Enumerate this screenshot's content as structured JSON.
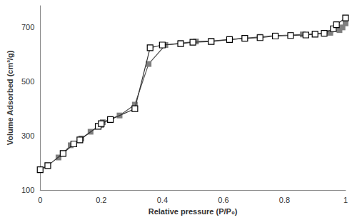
{
  "chart_data": {
    "type": "line",
    "x_label": "Relative pressure (P/P₀)",
    "y_label": "Volume Adsorbed (cm³/g)",
    "xlim": [
      0,
      1
    ],
    "xticks": [
      0,
      0.2,
      0.4,
      0.6,
      0.8,
      1
    ],
    "ylim": [
      100,
      780
    ],
    "yticks": [
      100,
      300,
      500,
      700
    ],
    "grid": false,
    "series": [
      {
        "color": "#000000",
        "marker": "square-open",
        "line_style": "solid",
        "x": [
          0.0,
          0.025,
          0.075,
          0.11,
          0.13,
          0.19,
          0.2,
          0.23,
          0.31,
          0.36,
          0.4,
          0.46,
          0.5,
          0.56,
          0.62,
          0.67,
          0.72,
          0.77,
          0.82,
          0.87,
          0.9,
          0.93,
          0.96,
          0.97,
          1.0
        ],
        "values": [
          175,
          190,
          235,
          270,
          285,
          335,
          345,
          360,
          400,
          625,
          635,
          640,
          645,
          648,
          655,
          660,
          662,
          668,
          670,
          672,
          675,
          678,
          695,
          710,
          735
        ]
      },
      {
        "color": "#7f7f7f",
        "marker": "square",
        "line_style": "solid",
        "x": [
          0.06,
          0.1,
          0.135,
          0.165,
          0.2,
          0.205,
          0.26,
          0.31,
          0.355,
          0.41,
          0.46,
          0.51,
          0.56,
          0.67,
          0.72,
          0.77,
          0.82,
          0.86,
          0.9,
          0.95,
          0.98,
          0.99,
          1.0
        ],
        "values": [
          220,
          265,
          290,
          315,
          340,
          350,
          375,
          415,
          565,
          635,
          642,
          648,
          650,
          660,
          665,
          670,
          672,
          674,
          676,
          680,
          690,
          700,
          715
        ]
      }
    ]
  }
}
